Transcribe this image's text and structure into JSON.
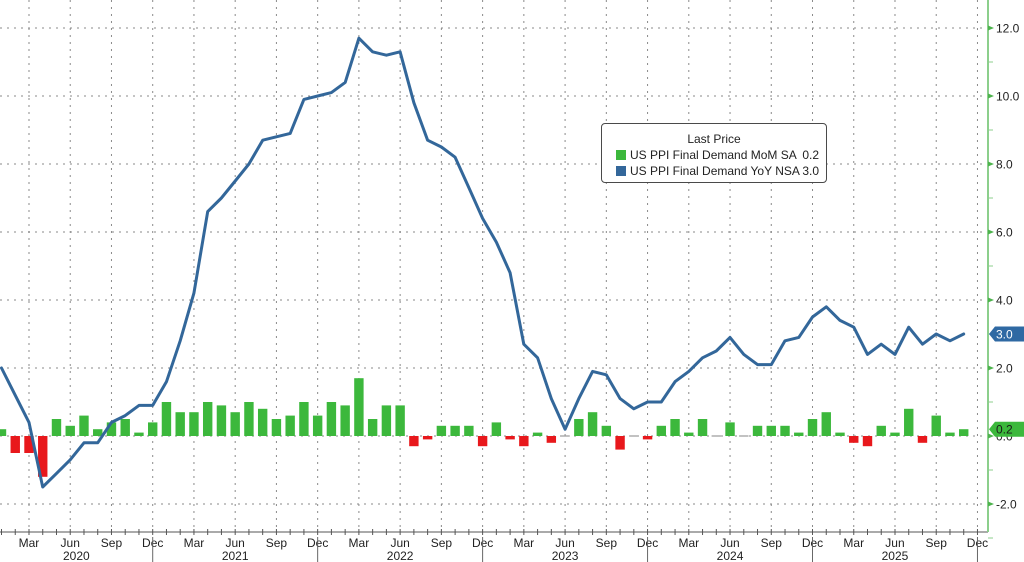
{
  "chart_data": {
    "type": "bar",
    "combo": "bar + line",
    "title": "",
    "xlabel": "",
    "ylabel": "",
    "ylim": [
      -2.8,
      12.8
    ],
    "y_axis_position": "right",
    "grid": true,
    "legend_position": "upper-right-center",
    "legend": {
      "title": "Last Price",
      "entries": [
        {
          "label": "US PPI Final Demand MoM SA",
          "value": "0.2",
          "color": "#3cb83c"
        },
        {
          "label": "US PPI Final Demand YoY NSA",
          "value": "3.0",
          "color": "#33679a"
        }
      ]
    },
    "x": [
      "Jan 2020",
      "Feb 2020",
      "Mar 2020",
      "Apr 2020",
      "May 2020",
      "Jun 2020",
      "Jul 2020",
      "Aug 2020",
      "Sep 2020",
      "Oct 2020",
      "Nov 2020",
      "Dec 2020",
      "Jan 2021",
      "Feb 2021",
      "Mar 2021",
      "Apr 2021",
      "May 2021",
      "Jun 2021",
      "Jul 2021",
      "Aug 2021",
      "Sep 2021",
      "Oct 2021",
      "Nov 2021",
      "Dec 2021",
      "Jan 2022",
      "Feb 2022",
      "Mar 2022",
      "Apr 2022",
      "May 2022",
      "Jun 2022",
      "Jul 2022",
      "Aug 2022",
      "Sep 2022",
      "Oct 2022",
      "Nov 2022",
      "Dec 2022",
      "Jan 2023",
      "Feb 2023",
      "Mar 2023",
      "Apr 2023",
      "May 2023",
      "Jun 2023",
      "Jul 2023",
      "Aug 2023",
      "Sep 2023",
      "Oct 2023",
      "Nov 2023",
      "Dec 2023",
      "Jan 2024",
      "Feb 2024",
      "Mar 2024",
      "Apr 2024",
      "May 2024",
      "Jun 2024",
      "Jul 2024",
      "Aug 2024",
      "Sep 2024",
      "Oct 2024",
      "Nov 2024",
      "Dec 2024",
      "Jan 2025",
      "Feb 2025",
      "Mar 2025",
      "Apr 2025",
      "May 2025",
      "Jun 2025",
      "Jul 2025",
      "Aug 2025",
      "Sep 2025",
      "Oct 2025",
      "Nov 2025"
    ],
    "series": [
      {
        "name": "US PPI Final Demand MoM SA",
        "type": "bar",
        "last_value": "0.2",
        "values": [
          0.2,
          -0.5,
          -0.5,
          -1.2,
          0.5,
          0.3,
          0.6,
          0.2,
          0.4,
          0.5,
          0.1,
          0.4,
          1.0,
          0.7,
          0.7,
          1.0,
          0.9,
          0.7,
          1.0,
          0.8,
          0.5,
          0.6,
          1.0,
          0.6,
          1.0,
          0.9,
          1.7,
          0.5,
          0.9,
          0.9,
          -0.3,
          -0.1,
          0.3,
          0.3,
          0.3,
          -0.3,
          0.4,
          -0.1,
          -0.3,
          0.1,
          -0.2,
          0.0,
          0.5,
          0.7,
          0.3,
          -0.4,
          0.0,
          -0.1,
          0.3,
          0.5,
          0.1,
          0.5,
          0.0,
          0.4,
          0.0,
          0.3,
          0.3,
          0.3,
          0.1,
          0.5,
          0.7,
          0.1,
          -0.2,
          -0.3,
          0.3,
          0.1,
          0.8,
          -0.2,
          0.6,
          0.1,
          0.2
        ]
      },
      {
        "name": "US PPI Final Demand YoY NSA",
        "type": "line",
        "last_value": "3.0",
        "values": [
          2.0,
          1.2,
          0.4,
          -1.5,
          -1.1,
          -0.7,
          -0.2,
          -0.2,
          0.4,
          0.6,
          0.9,
          0.9,
          1.6,
          2.8,
          4.2,
          6.6,
          7.0,
          7.5,
          8.0,
          8.7,
          8.8,
          8.9,
          9.9,
          10.0,
          10.1,
          10.4,
          11.7,
          11.3,
          11.2,
          11.3,
          9.8,
          8.7,
          8.5,
          8.2,
          7.3,
          6.4,
          5.7,
          4.8,
          2.7,
          2.3,
          1.1,
          0.2,
          1.1,
          1.9,
          1.8,
          1.1,
          0.8,
          1.0,
          1.0,
          1.6,
          1.9,
          2.3,
          2.5,
          2.9,
          2.4,
          2.1,
          2.1,
          2.8,
          2.9,
          3.5,
          3.8,
          3.4,
          3.2,
          2.4,
          2.7,
          2.4,
          3.2,
          2.7,
          3.0,
          2.8,
          3.0
        ]
      }
    ],
    "y_ticks": [
      12,
      10,
      8,
      6,
      4,
      2,
      0,
      -2
    ],
    "y_tick_labels": [
      "12.0",
      "10.0",
      "8.0",
      "6.0",
      "4.0",
      "2.0",
      "0.0",
      "-2.0"
    ],
    "x_ticks": [
      {
        "label": "Mar",
        "at": "Mar 2020"
      },
      {
        "label": "Jun",
        "at": "Jun 2020"
      },
      {
        "label": "Sep",
        "at": "Sep 2020"
      },
      {
        "label": "Dec",
        "at": "Dec 2020"
      },
      {
        "label": "Mar",
        "at": "Mar 2021"
      },
      {
        "label": "Jun",
        "at": "Jun 2021"
      },
      {
        "label": "Sep",
        "at": "Sep 2021"
      },
      {
        "label": "Dec",
        "at": "Dec 2021"
      },
      {
        "label": "Mar",
        "at": "Mar 2022"
      },
      {
        "label": "Jun",
        "at": "Jun 2022"
      },
      {
        "label": "Sep",
        "at": "Sep 2022"
      },
      {
        "label": "Dec",
        "at": "Dec 2022"
      },
      {
        "label": "Mar",
        "at": "Mar 2023"
      },
      {
        "label": "Jun",
        "at": "Jun 2023"
      },
      {
        "label": "Sep",
        "at": "Sep 2023"
      },
      {
        "label": "Dec",
        "at": "Dec 2023"
      },
      {
        "label": "Mar",
        "at": "Mar 2024"
      },
      {
        "label": "Jun",
        "at": "Jun 2024"
      },
      {
        "label": "Sep",
        "at": "Sep 2024"
      },
      {
        "label": "Dec",
        "at": "Dec 2024"
      },
      {
        "label": "Mar",
        "at": "Mar 2025"
      },
      {
        "label": "Jun",
        "at": "Jun 2025"
      },
      {
        "label": "Sep",
        "at": "Sep 2025"
      },
      {
        "label": "Dec",
        "at": "Dec 2025"
      }
    ],
    "year_labels": [
      "2020",
      "2021",
      "2022",
      "2023",
      "2024",
      "2025"
    ],
    "value_tags": [
      {
        "series": "US PPI Final Demand YoY NSA",
        "text": "3.0",
        "value": 3.0,
        "bg": "#2f69a3",
        "fg": "#ffffff"
      },
      {
        "series": "US PPI Final Demand MoM SA",
        "text": "0.2",
        "value": 0.2,
        "bg": "#3cb83c",
        "fg": "#1a1a1a"
      }
    ],
    "colors": {
      "bar_positive": "#3cb83c",
      "bar_negative": "#e8181c",
      "line": "#33679a",
      "right_axis": "#8ccf8c"
    }
  }
}
